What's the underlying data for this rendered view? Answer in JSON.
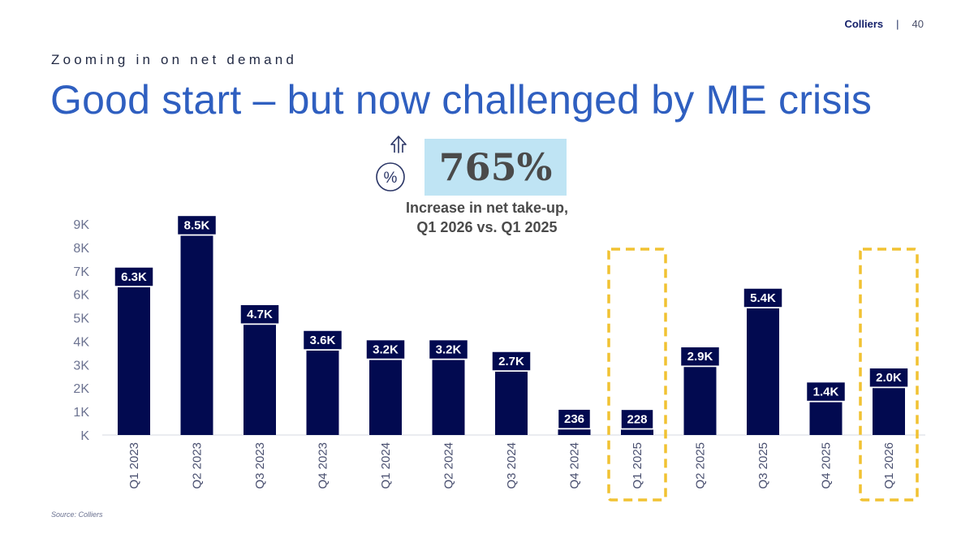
{
  "header": {
    "brand": "Colliers",
    "separator": "|",
    "page_number": "40"
  },
  "subtitle": "Zooming in on net demand",
  "title": "Good start – but now challenged by ME crisis",
  "stat": {
    "value": "765%",
    "caption_line1": "Increase in net take-up,",
    "caption_line2": "Q1 2026 vs. Q1 2025",
    "icon": "percent-up-arrow-icon"
  },
  "source": "Source: Colliers",
  "colors": {
    "bar": "#020a50",
    "highlight": "#f1c232",
    "title": "#2f5fc0",
    "stat_bg": "#bfe4f4"
  },
  "chart_data": {
    "type": "bar",
    "categories": [
      "Q1 2023",
      "Q2 2023",
      "Q3 2023",
      "Q4 2023",
      "Q1 2024",
      "Q2 2024",
      "Q3 2024",
      "Q4 2024",
      "Q1 2025",
      "Q2 2025",
      "Q3 2025",
      "Q4 2025",
      "Q1 2026"
    ],
    "values": [
      6300,
      8500,
      4700,
      3600,
      3200,
      3200,
      2700,
      236,
      228,
      2900,
      5400,
      1400,
      2000
    ],
    "data_labels": [
      "6.3K",
      "8.5K",
      "4.7K",
      "3.6K",
      "3.2K",
      "3.2K",
      "2.7K",
      "236",
      "228",
      "2.9K",
      "5.4K",
      "1.4K",
      "2.0K"
    ],
    "y_ticks": [
      0,
      1000,
      2000,
      3000,
      4000,
      5000,
      6000,
      7000,
      8000,
      9000
    ],
    "y_tick_labels": [
      "K",
      "1K",
      "2K",
      "3K",
      "4K",
      "5K",
      "6K",
      "7K",
      "8K",
      "9K"
    ],
    "ylim": [
      0,
      9000
    ],
    "highlighted": [
      "Q1 2025",
      "Q1 2026"
    ],
    "grid": false,
    "legend": false
  }
}
